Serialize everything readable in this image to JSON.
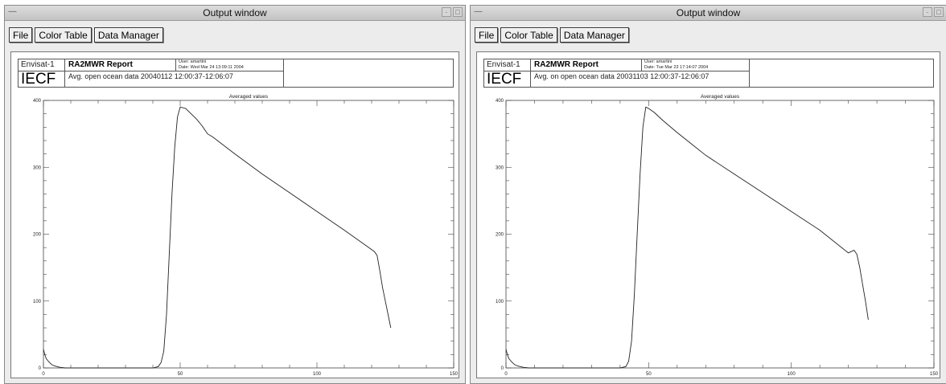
{
  "windows": [
    {
      "title": "Output window",
      "toolbar": {
        "file_label": "File",
        "color_table_label": "Color Table",
        "data_manager_label": "Data Manager"
      },
      "header": {
        "mission": "Envisat-1",
        "org": "IECF",
        "report_title": "RA2MWR Report",
        "user_line": "User: amartini",
        "date_line": "Date: Wed Mar 24 13:09:11 2004",
        "description": "Avg. open ocean data 20040112 12:00:37-12:06:07"
      },
      "chart_data": {
        "type": "line",
        "title": "Averaged values",
        "xlim": [
          0,
          150
        ],
        "ylim": [
          0,
          400
        ],
        "x_ticks": [
          "0",
          "50",
          "100",
          "150"
        ],
        "y_ticks": [
          "0",
          "100",
          "200",
          "300",
          "400"
        ],
        "series": [
          {
            "x": [
              0,
              0.5,
              1,
              2,
              3,
              4,
              5,
              6,
              8,
              10,
              20,
              30,
              40,
              42,
              43,
              44,
              45,
              46,
              47,
              48,
              49,
              50,
              52,
              54,
              56,
              58,
              60,
              62,
              70,
              80,
              90,
              100,
              110,
              119,
              121,
              122,
              123,
              124,
              125,
              126,
              127
            ],
            "y": [
              28,
              20,
              14,
              9,
              5,
              3,
              2,
              1,
              0,
              0,
              0,
              0,
              0,
              2,
              8,
              25,
              80,
              170,
              260,
              330,
              375,
              390,
              388,
              380,
              372,
              362,
              350,
              345,
              320,
              290,
              262,
              234,
              206,
              180,
              174,
              168,
              145,
              120,
              100,
              80,
              60
            ]
          }
        ]
      }
    },
    {
      "title": "Output window",
      "toolbar": {
        "file_label": "File",
        "color_table_label": "Color Table",
        "data_manager_label": "Data Manager"
      },
      "header": {
        "mission": "Envisat-1",
        "org": "IECF",
        "report_title": "RA2MWR Report",
        "user_line": "User: amartini",
        "date_line": "Date: Tue Mar 23 17:14:07 2004",
        "description": "Avg. on open ocean data 20031103 12:00:37-12:06:07"
      },
      "chart_data": {
        "type": "line",
        "title": "Averaged values",
        "xlim": [
          0,
          150
        ],
        "ylim": [
          0,
          400
        ],
        "x_ticks": [
          "0",
          "50",
          "100",
          "150"
        ],
        "y_ticks": [
          "0",
          "100",
          "200",
          "300",
          "400"
        ],
        "series": [
          {
            "x": [
              0,
              0.5,
              1,
              2,
              3,
              4,
              5,
              6,
              8,
              10,
              20,
              30,
              40,
              42,
              43,
              44,
              45,
              46,
              47,
              48,
              49,
              50,
              52,
              55,
              60,
              65,
              70,
              80,
              90,
              100,
              110,
              120,
              122,
              123,
              124,
              125,
              126,
              127
            ],
            "y": [
              28,
              20,
              14,
              9,
              5,
              3,
              2,
              1,
              0,
              0,
              0,
              0,
              0,
              2,
              10,
              40,
              110,
              200,
              290,
              360,
              390,
              388,
              382,
              370,
              352,
              335,
              318,
              290,
              262,
              234,
              206,
              172,
              176,
              170,
              150,
              125,
              100,
              72
            ]
          }
        ]
      }
    }
  ]
}
